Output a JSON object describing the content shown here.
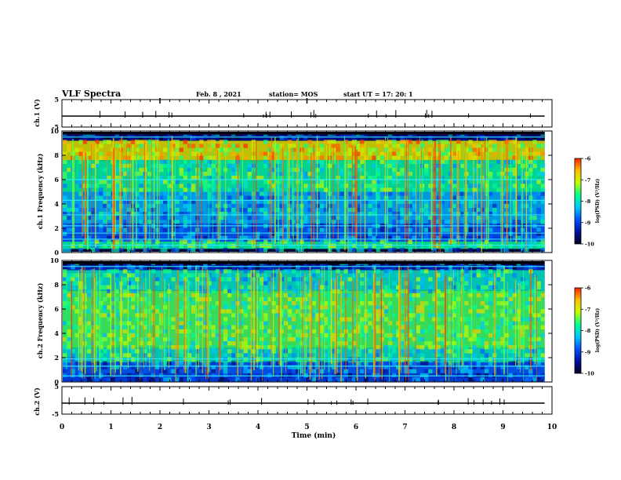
{
  "header": {
    "title": "VLF Spectra",
    "date": "Feb. 8 , 2021",
    "station": "station= MOS",
    "start": "start UT =  17: 20: 1"
  },
  "chart_data": [
    {
      "type": "line",
      "panel": "ch.1 waveform",
      "ylabel": "ch.1 (V)",
      "ylim": [
        -5,
        5
      ],
      "yticks": [
        "5",
        "-5"
      ],
      "xlim": [
        0,
        10
      ],
      "series": [
        {
          "values": [
            [
              0,
              -1
            ],
            [
              9.85,
              -1
            ]
          ]
        }
      ]
    },
    {
      "type": "heatmap",
      "panel": "ch.1 spectrogram",
      "ylabel": "ch.1 Frequency (kHz)",
      "xlim": [
        0,
        10
      ],
      "ylim": [
        0,
        10
      ],
      "yticks": [
        "0",
        "2",
        "4",
        "6",
        "8",
        "10"
      ],
      "data_extent_x": [
        0,
        9.85
      ],
      "colorbar": {
        "label": "log(PSD) (V²/Hz)",
        "range": [
          -10,
          -6
        ],
        "ticks": [
          "-6",
          "-7",
          "-8",
          "-9",
          "-10"
        ]
      }
    },
    {
      "type": "heatmap",
      "panel": "ch.2 spectrogram",
      "ylabel": "ch.2 Frequency (kHz)",
      "xlim": [
        0,
        10
      ],
      "ylim": [
        0,
        10
      ],
      "yticks": [
        "0",
        "2",
        "4",
        "6",
        "8",
        "10"
      ],
      "data_extent_x": [
        0,
        9.85
      ],
      "colorbar": {
        "label": "log(PSD) (V²/Hz)",
        "range": [
          -10,
          -6
        ],
        "ticks": [
          "-6",
          "-7",
          "-8",
          "-9",
          "-10"
        ]
      }
    },
    {
      "type": "line",
      "panel": "ch.2 waveform",
      "ylabel": "ch.2 (V)",
      "ylim": [
        -5,
        5
      ],
      "yticks": [
        "5",
        "-5"
      ],
      "xlim": [
        0,
        10
      ],
      "series": [
        {
          "values": [
            [
              0,
              -1
            ],
            [
              9.85,
              -1
            ]
          ]
        }
      ]
    }
  ],
  "xaxis": {
    "label": "Time (min)",
    "ticks": [
      "0",
      "1",
      "2",
      "3",
      "4",
      "5",
      "6",
      "7",
      "8",
      "9",
      "10"
    ]
  },
  "colors": {
    "colormap": [
      "#000020",
      "#0010a0",
      "#0050ff",
      "#00c8ff",
      "#00ff90",
      "#c0ff00",
      "#ffc000",
      "#ff2000"
    ],
    "frame": "#000000"
  }
}
